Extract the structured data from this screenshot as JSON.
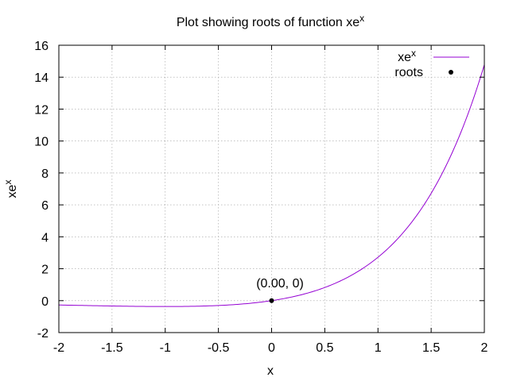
{
  "chart_data": {
    "type": "line",
    "title": {
      "base": "Plot showing roots of function xe",
      "sup": "x"
    },
    "xlabel": "x",
    "ylabel": {
      "base": "xe",
      "sup": "x"
    },
    "xlim": [
      -2,
      2
    ],
    "ylim": [
      -2,
      16
    ],
    "x_ticks": [
      "-2",
      "-1.5",
      "-1",
      "-0.5",
      "0",
      "0.5",
      "1",
      "1.5",
      "2"
    ],
    "y_ticks": [
      "-2",
      "0",
      "2",
      "4",
      "6",
      "8",
      "10",
      "12",
      "14",
      "16"
    ],
    "grid": true,
    "legend_position": "top-right",
    "series": [
      {
        "name": {
          "base": "xe",
          "sup": "x"
        },
        "kind": "line",
        "color": "#9400d3",
        "function": "x*exp(x)",
        "x": [
          -2,
          -1.75,
          -1.5,
          -1.25,
          -1,
          -0.75,
          -0.5,
          -0.25,
          0,
          0.25,
          0.5,
          0.75,
          1,
          1.25,
          1.5,
          1.75,
          2
        ],
        "y": [
          -0.27,
          -0.3,
          -0.33,
          -0.36,
          -0.37,
          -0.35,
          -0.3,
          -0.19,
          0,
          0.32,
          0.82,
          1.59,
          2.72,
          4.36,
          6.72,
          10.07,
          14.78
        ]
      },
      {
        "name": "roots",
        "kind": "points",
        "color": "#000000",
        "x": [
          0
        ],
        "y": [
          0
        ]
      }
    ],
    "annotations": [
      {
        "text": "(0.00, 0)",
        "x": 0,
        "y": 0
      }
    ]
  }
}
